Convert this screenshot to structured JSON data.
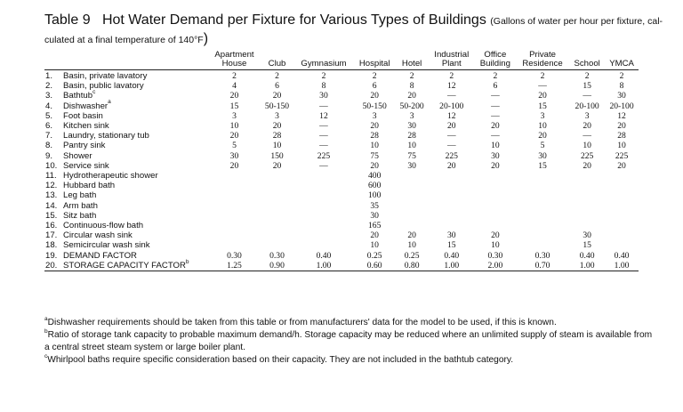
{
  "title": {
    "label": "Table 9",
    "main": "Hot Water Demand per Fixture for Various Types of Buildings",
    "paren": "(Gallons of water per hour per fixture, cal-",
    "cont": "culated at a final temperature of 140°F",
    "close": ")"
  },
  "columns": [
    {
      "top": "Apartment",
      "bottom": "House"
    },
    {
      "top": "",
      "bottom": "Club"
    },
    {
      "top": "",
      "bottom": "Gymnasium"
    },
    {
      "top": "",
      "bottom": "Hospital"
    },
    {
      "top": "",
      "bottom": "Hotel"
    },
    {
      "top": "Industrial",
      "bottom": "Plant"
    },
    {
      "top": "Office",
      "bottom": "Building"
    },
    {
      "top": "Private",
      "bottom": "Residence"
    },
    {
      "top": "",
      "bottom": "School"
    },
    {
      "top": "",
      "bottom": "YMCA"
    }
  ],
  "rows": [
    {
      "num": "1.",
      "label": "Basin, private lavatory",
      "sup": "",
      "values": [
        "2",
        "2",
        "2",
        "2",
        "2",
        "2",
        "2",
        "2",
        "2",
        "2"
      ]
    },
    {
      "num": "2.",
      "label": "Basin, public lavatory",
      "sup": "",
      "values": [
        "4",
        "6",
        "8",
        "6",
        "8",
        "12",
        "6",
        "—",
        "15",
        "8"
      ]
    },
    {
      "num": "3.",
      "label": "Bathtub",
      "sup": "c",
      "values": [
        "20",
        "20",
        "30",
        "20",
        "20",
        "—",
        "—",
        "20",
        "—",
        "30"
      ]
    },
    {
      "num": "4.",
      "label": "Dishwasher",
      "sup": "a",
      "values": [
        "15",
        "50-150",
        "—",
        "50-150",
        "50-200",
        "20-100",
        "—",
        "15",
        "20-100",
        "20-100"
      ]
    },
    {
      "num": "5.",
      "label": "Foot basin",
      "sup": "",
      "values": [
        "3",
        "3",
        "12",
        "3",
        "3",
        "12",
        "—",
        "3",
        "3",
        "12"
      ]
    },
    {
      "num": "6.",
      "label": "Kitchen sink",
      "sup": "",
      "values": [
        "10",
        "20",
        "—",
        "20",
        "30",
        "20",
        "20",
        "10",
        "20",
        "20"
      ]
    },
    {
      "num": "7.",
      "label": "Laundry, stationary tub",
      "sup": "",
      "values": [
        "20",
        "28",
        "—",
        "28",
        "28",
        "—",
        "—",
        "20",
        "—",
        "28"
      ]
    },
    {
      "num": "8.",
      "label": "Pantry sink",
      "sup": "",
      "values": [
        "5",
        "10",
        "—",
        "10",
        "10",
        "—",
        "10",
        "5",
        "10",
        "10"
      ]
    },
    {
      "num": "9.",
      "label": "Shower",
      "sup": "",
      "values": [
        "30",
        "150",
        "225",
        "75",
        "75",
        "225",
        "30",
        "30",
        "225",
        "225"
      ]
    },
    {
      "num": "10.",
      "label": "Service sink",
      "sup": "",
      "values": [
        "20",
        "20",
        "—",
        "20",
        "30",
        "20",
        "20",
        "15",
        "20",
        "20"
      ]
    },
    {
      "num": "11.",
      "label": "Hydrotherapeutic shower",
      "sup": "",
      "values": [
        "",
        "",
        "",
        "400",
        "",
        "",
        "",
        "",
        "",
        ""
      ]
    },
    {
      "num": "12.",
      "label": "Hubbard bath",
      "sup": "",
      "values": [
        "",
        "",
        "",
        "600",
        "",
        "",
        "",
        "",
        "",
        ""
      ]
    },
    {
      "num": "13.",
      "label": "Leg bath",
      "sup": "",
      "values": [
        "",
        "",
        "",
        "100",
        "",
        "",
        "",
        "",
        "",
        ""
      ]
    },
    {
      "num": "14.",
      "label": "Arm bath",
      "sup": "",
      "values": [
        "",
        "",
        "",
        "35",
        "",
        "",
        "",
        "",
        "",
        ""
      ]
    },
    {
      "num": "15.",
      "label": "Sitz bath",
      "sup": "",
      "values": [
        "",
        "",
        "",
        "30",
        "",
        "",
        "",
        "",
        "",
        ""
      ]
    },
    {
      "num": "16.",
      "label": "Continuous-flow bath",
      "sup": "",
      "values": [
        "",
        "",
        "",
        "165",
        "",
        "",
        "",
        "",
        "",
        ""
      ]
    },
    {
      "num": "17.",
      "label": "Circular wash sink",
      "sup": "",
      "values": [
        "",
        "",
        "",
        "20",
        "20",
        "30",
        "20",
        "",
        "30",
        ""
      ]
    },
    {
      "num": "18.",
      "label": "Semicircular wash sink",
      "sup": "",
      "values": [
        "",
        "",
        "",
        "10",
        "10",
        "15",
        "10",
        "",
        "15",
        ""
      ]
    },
    {
      "num": "19.",
      "label": "DEMAND FACTOR",
      "sup": "",
      "values": [
        "0.30",
        "0.30",
        "0.40",
        "0.25",
        "0.25",
        "0.40",
        "0.30",
        "0.30",
        "0.40",
        "0.40"
      ]
    },
    {
      "num": "20.",
      "label": "STORAGE CAPACITY FACTOR",
      "sup": "b",
      "values": [
        "1.25",
        "0.90",
        "1.00",
        "0.60",
        "0.80",
        "1.00",
        "2.00",
        "0.70",
        "1.00",
        "1.00"
      ]
    }
  ],
  "notes": [
    {
      "sup": "a",
      "text": "Dishwasher requirements should be taken from this table or from manufacturers' data for the model to be used, if this is known."
    },
    {
      "sup": "b",
      "text": "Ratio of storage tank capacity to probable maximum demand/h. Storage capacity may be reduced where an unlimited supply of steam is available from a central street steam system or large boiler plant."
    },
    {
      "sup": "c",
      "text": "Whirlpool baths require specific consideration based on their capacity. They are not included in the bathtub category."
    }
  ]
}
